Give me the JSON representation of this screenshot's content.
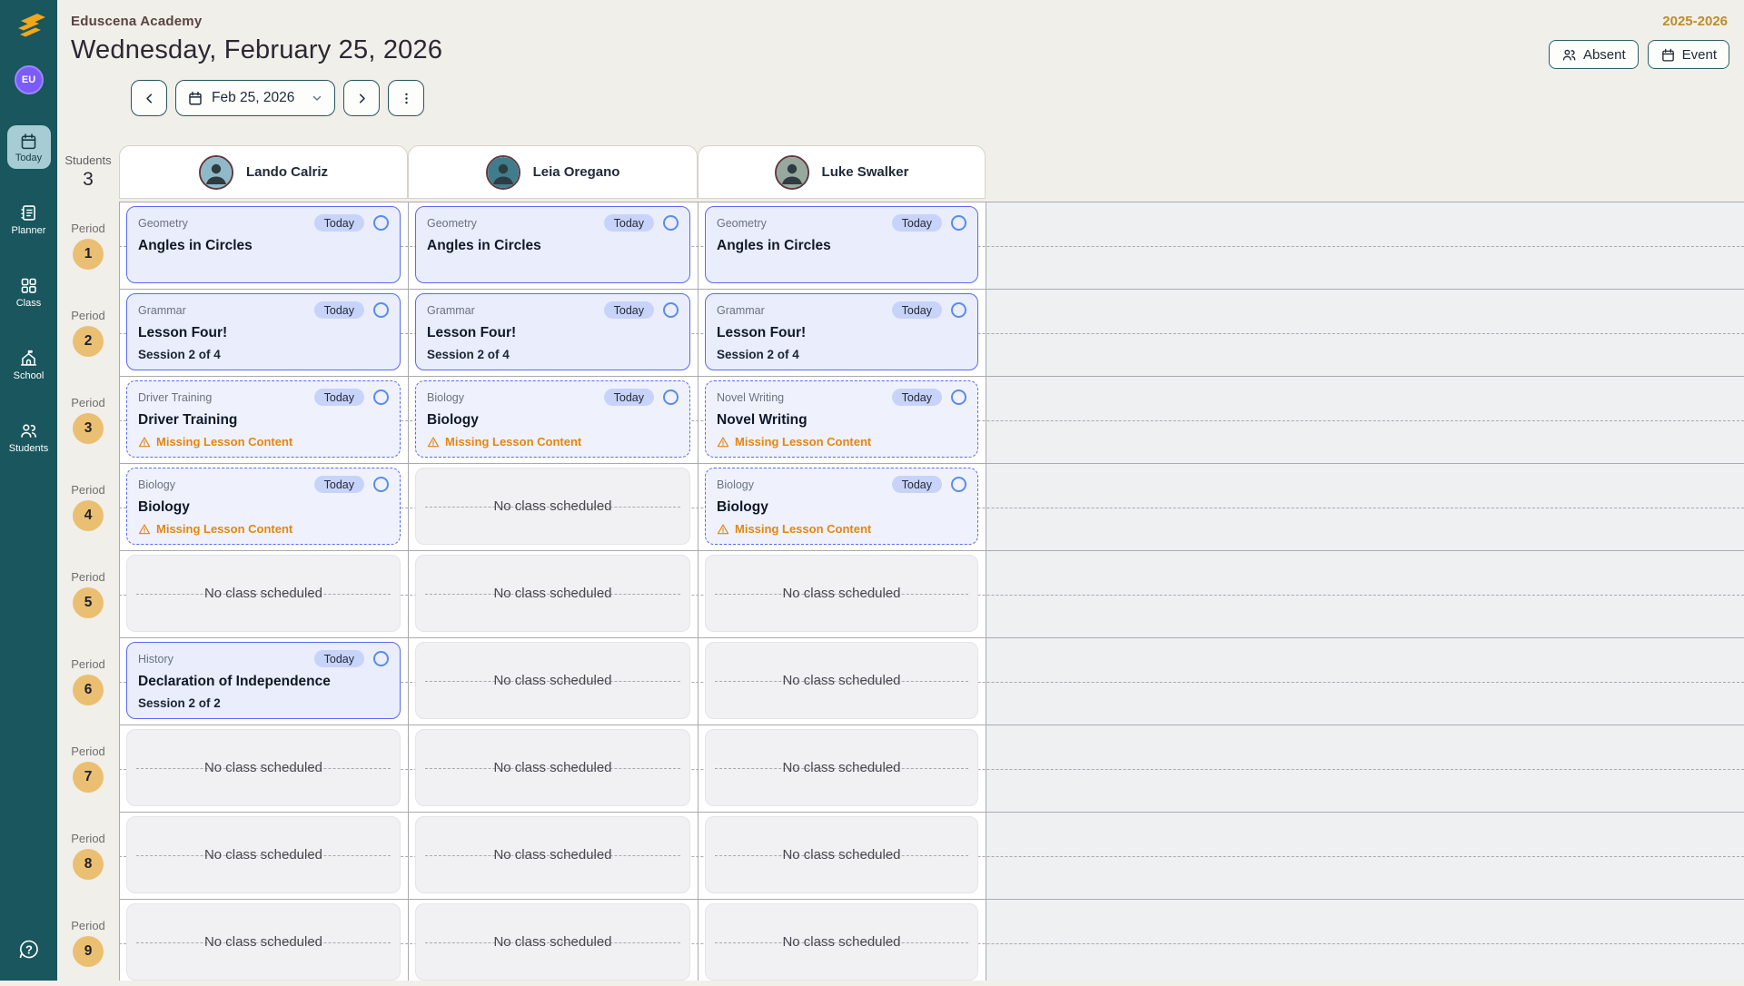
{
  "app": {
    "avatar_initials": "EU"
  },
  "header": {
    "school_name": "Eduscena Academy",
    "date_heading": "Wednesday, February 25, 2026",
    "school_year": "2025-2026",
    "absent_button": "Absent",
    "event_button": "Event",
    "date_picker_value": "Feb 25, 2026"
  },
  "sidebar": {
    "items": [
      {
        "id": "today",
        "label": "Today",
        "active": true
      },
      {
        "id": "planner",
        "label": "Planner",
        "active": false
      },
      {
        "id": "class",
        "label": "Class",
        "active": false
      },
      {
        "id": "school",
        "label": "School",
        "active": false
      },
      {
        "id": "students",
        "label": "Students",
        "active": false
      }
    ]
  },
  "schedule": {
    "students_label": "Students",
    "students_count": "3",
    "period_label": "Period",
    "today_badge_label": "Today",
    "missing_content_label": "Missing Lesson Content",
    "no_class_label": "No class scheduled",
    "students": [
      {
        "name": "Lando Calriz",
        "avatar_color": "#8FB9C9"
      },
      {
        "name": "Leia Oregano",
        "avatar_color": "#3F7D8C"
      },
      {
        "name": "Luke Swalker",
        "avatar_color": "#97A89E"
      }
    ],
    "rows": [
      {
        "period": "1",
        "cells": [
          {
            "subject": "Geometry",
            "title": "Angles in Circles",
            "today": true
          },
          {
            "subject": "Geometry",
            "title": "Angles in Circles",
            "today": true
          },
          {
            "subject": "Geometry",
            "title": "Angles in Circles",
            "today": true
          }
        ]
      },
      {
        "period": "2",
        "cells": [
          {
            "subject": "Grammar",
            "title": "Lesson Four!",
            "session": "Session 2 of 4",
            "today": true
          },
          {
            "subject": "Grammar",
            "title": "Lesson Four!",
            "session": "Session 2 of 4",
            "today": true
          },
          {
            "subject": "Grammar",
            "title": "Lesson Four!",
            "session": "Session 2 of 4",
            "today": true
          }
        ]
      },
      {
        "period": "3",
        "cells": [
          {
            "subject": "Driver Training",
            "title": "Driver Training",
            "missing": true,
            "today": true
          },
          {
            "subject": "Biology",
            "title": "Biology",
            "missing": true,
            "today": true
          },
          {
            "subject": "Novel Writing",
            "title": "Novel Writing",
            "missing": true,
            "today": true
          }
        ]
      },
      {
        "period": "4",
        "cells": [
          {
            "subject": "Biology",
            "title": "Biology",
            "missing": true,
            "today": true
          },
          null,
          {
            "subject": "Biology",
            "title": "Biology",
            "missing": true,
            "today": true
          }
        ]
      },
      {
        "period": "5",
        "cells": [
          null,
          null,
          null
        ]
      },
      {
        "period": "6",
        "cells": [
          {
            "subject": "History",
            "title": "Declaration of Independence",
            "session": "Session 2 of 2",
            "today": true
          },
          null,
          null
        ]
      },
      {
        "period": "7",
        "cells": [
          null,
          null,
          null
        ]
      },
      {
        "period": "8",
        "cells": [
          null,
          null,
          null
        ]
      },
      {
        "period": "9",
        "cells": [
          null,
          null,
          null
        ]
      }
    ]
  },
  "colors": {
    "sidebar": "#19565E",
    "sidebar_active": "#A7CCD3",
    "page_bg": "#F1EFE9",
    "accent_gold": "#BD8C2B",
    "period_circle": "#EBBF72",
    "lesson_bg": "#E9EDFC",
    "lesson_border": "#5A6AF0",
    "badge_bg": "#C8D3F9",
    "missing_orange": "#E4860F",
    "grid_line": "#ABABAF"
  }
}
